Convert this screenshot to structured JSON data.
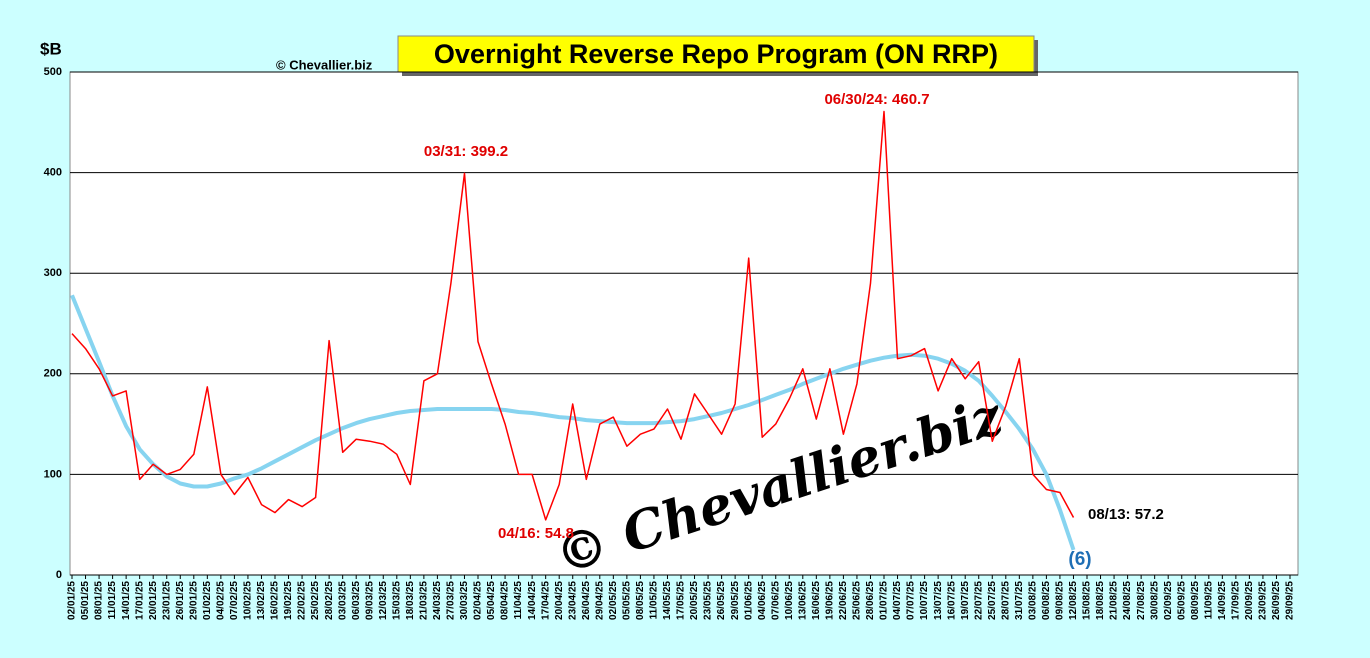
{
  "chart_data": {
    "type": "line",
    "title": "Overnight Reverse Repo Program (ON RRP)",
    "y_label": "$B",
    "source": "© Chevallier.biz",
    "watermark": "© Chevallier.biz",
    "annotations": [
      "03/31: 399.2",
      "04/16: 54.8",
      "06/30/24: 460.7",
      "08/13: 57.2",
      "(6)"
    ],
    "categories": [
      "02/01/25",
      "05/01/25",
      "08/01/25",
      "11/01/25",
      "14/01/25",
      "17/01/25",
      "20/01/25",
      "23/01/25",
      "26/01/25",
      "29/01/25",
      "01/02/25",
      "04/02/25",
      "07/02/25",
      "10/02/25",
      "13/02/25",
      "16/02/25",
      "19/02/25",
      "22/02/25",
      "25/02/25",
      "28/02/25",
      "03/03/25",
      "06/03/25",
      "09/03/25",
      "12/03/25",
      "15/03/25",
      "18/03/25",
      "21/03/25",
      "24/03/25",
      "27/03/25",
      "30/03/25",
      "02/04/25",
      "05/04/25",
      "08/04/25",
      "11/04/25",
      "14/04/25",
      "17/04/25",
      "20/04/25",
      "23/04/25",
      "26/04/25",
      "29/04/25",
      "02/05/25",
      "05/05/25",
      "08/05/25",
      "11/05/25",
      "14/05/25",
      "17/05/25",
      "20/05/25",
      "23/05/25",
      "26/05/25",
      "29/05/25",
      "01/06/25",
      "04/06/25",
      "07/06/25",
      "10/06/25",
      "13/06/25",
      "16/06/25",
      "19/06/25",
      "22/06/25",
      "25/06/25",
      "28/06/25",
      "01/07/25",
      "04/07/25",
      "07/07/25",
      "10/07/25",
      "13/07/25",
      "16/07/25",
      "19/07/25",
      "22/07/25",
      "25/07/25",
      "28/07/25",
      "31/07/25",
      "03/08/25",
      "06/08/25",
      "09/08/25",
      "12/08/25",
      "15/08/25",
      "18/08/25",
      "21/08/25",
      "24/08/25",
      "27/08/25",
      "30/08/25",
      "02/09/25",
      "05/09/25",
      "08/09/25",
      "11/09/25",
      "14/09/25",
      "17/09/25",
      "20/09/25",
      "23/09/25",
      "26/09/25",
      "29/09/25"
    ],
    "series": [
      {
        "color": "#ff0000",
        "width": 1.5,
        "values": [
          240,
          225,
          205,
          178,
          183,
          95,
          110,
          100,
          105,
          120,
          187,
          100,
          80,
          97,
          70,
          62,
          75,
          68,
          77,
          233,
          122,
          135,
          133,
          130,
          120,
          90,
          193,
          200,
          290,
          399.2,
          232,
          190,
          150,
          100,
          100,
          54.8,
          90,
          170,
          95,
          150,
          157,
          128,
          140,
          145,
          165,
          135,
          180,
          160,
          140,
          170,
          315,
          137,
          150,
          175,
          205,
          155,
          205,
          140,
          190,
          290,
          460.7,
          215,
          218,
          225,
          183,
          215,
          195,
          212,
          133,
          168,
          215,
          100,
          85,
          82,
          57.2,
          null,
          null,
          null,
          null,
          null,
          null,
          null,
          null,
          null,
          null,
          null,
          null,
          null,
          null,
          null,
          null
        ]
      },
      {
        "color": "#87d4f0",
        "width": 4,
        "values": [
          278,
          245,
          212,
          178,
          148,
          125,
          110,
          98,
          91,
          88,
          88,
          91,
          96,
          100,
          106,
          113,
          120,
          127,
          134,
          140,
          146,
          151,
          155,
          158,
          161,
          163,
          164,
          165,
          165,
          165,
          165,
          165,
          164,
          162,
          161,
          159,
          157,
          156,
          154,
          153,
          152,
          151,
          151,
          151,
          152,
          153,
          155,
          158,
          161,
          165,
          169,
          174,
          179,
          184,
          190,
          195,
          200,
          205,
          209,
          213,
          216,
          218,
          219,
          218,
          215,
          210,
          203,
          193,
          178,
          162,
          145,
          125,
          100,
          65,
          25,
          null,
          null,
          null,
          null,
          null,
          null,
          null,
          null,
          null,
          null,
          null,
          null,
          null,
          null,
          null,
          null
        ]
      }
    ],
    "ylim": [
      0,
      500
    ],
    "yticks": [
      0,
      100,
      200,
      300,
      400,
      500
    ],
    "grid": true
  }
}
